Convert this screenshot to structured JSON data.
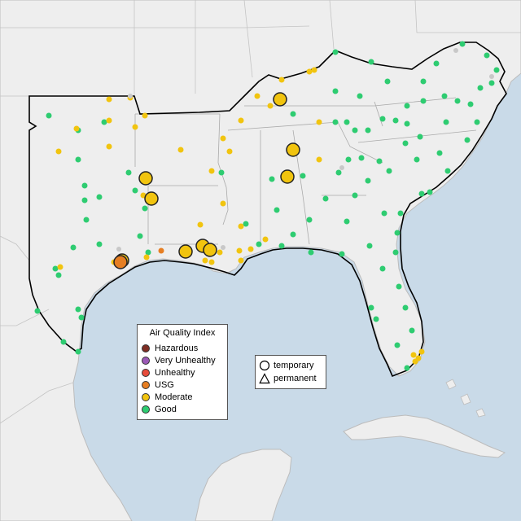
{
  "colors": {
    "ocean": "#c9dae8",
    "land": "#eeeeee",
    "land_edge": "#bcbcbc",
    "region_outline": "#000000"
  },
  "legend": {
    "title": "Air Quality Index",
    "items": [
      {
        "label": "Hazardous",
        "color": "#7e2e24"
      },
      {
        "label": "Very Unhealthy",
        "color": "#9b59b6"
      },
      {
        "label": "Unhealthy",
        "color": "#e74c3c"
      },
      {
        "label": "USG",
        "color": "#e67e22"
      },
      {
        "label": "Moderate",
        "color": "#f1c40f"
      },
      {
        "label": "Good",
        "color": "#2ecc71"
      }
    ]
  },
  "monitor_types": {
    "temporary": "temporary",
    "permanent": "permanent"
  },
  "temporary_monitors": [
    {
      "category": "Moderate"
    },
    {
      "category": "Moderate"
    },
    {
      "category": "Moderate"
    },
    {
      "category": "Moderate"
    },
    {
      "category": "Moderate"
    },
    {
      "category": "Moderate"
    },
    {
      "category": "Moderate"
    },
    {
      "category": "Moderate"
    },
    {
      "category": "Moderate"
    },
    {
      "category": "USG"
    }
  ]
}
